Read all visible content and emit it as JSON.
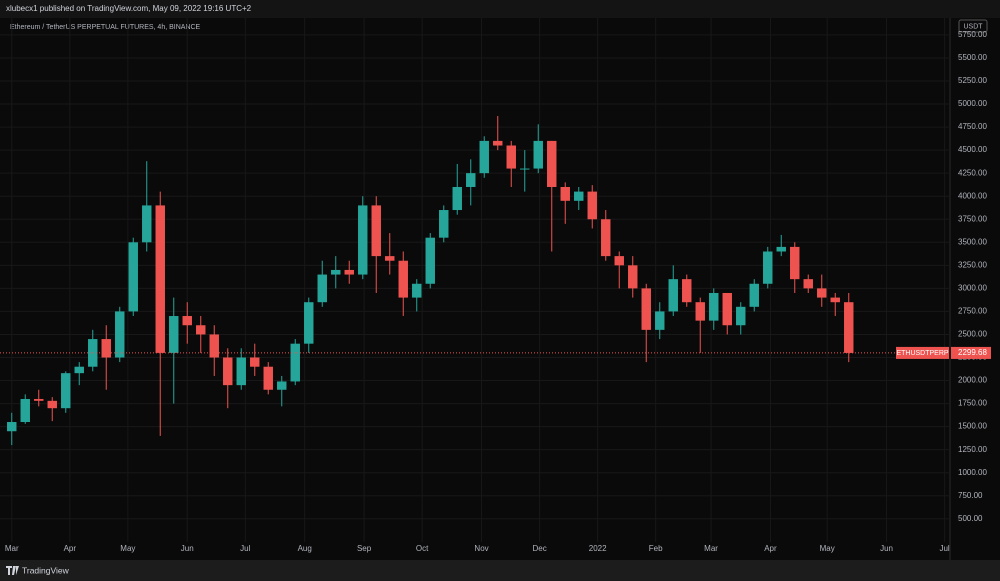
{
  "header": {
    "publisher": "xlubecx1 published on TradingView.com, May 09, 2022 19:16 UTC+2"
  },
  "chart_data": {
    "type": "candlestick",
    "title": "Ethereum / TetherUS PERPETUAL FUTURES, 4h, BINANCE",
    "currency": "USDT",
    "symbol": "ETHUSDTPERP",
    "up_color": "#26a69a",
    "down_color": "#ef5350",
    "grid": true,
    "x": [
      0,
      1,
      2,
      3,
      4,
      5,
      6,
      7,
      8,
      9,
      10,
      11,
      12,
      13,
      14,
      15,
      16,
      17,
      18,
      19,
      20,
      21,
      22,
      23,
      24,
      25,
      26,
      27,
      28,
      29,
      30,
      31,
      32,
      33,
      34,
      35,
      36,
      37,
      38,
      39,
      40,
      41,
      42,
      43,
      44,
      45,
      46,
      47,
      48,
      49,
      50,
      51,
      52,
      53,
      54,
      55,
      56,
      57,
      58,
      59,
      60,
      61,
      62
    ],
    "open": [
      1450,
      1550,
      1800,
      1780,
      1700,
      2080,
      2150,
      2450,
      2250,
      2750,
      3500,
      3900,
      2300,
      2700,
      2600,
      2500,
      2250,
      1950,
      2250,
      2150,
      1900,
      1990,
      2400,
      2850,
      3150,
      3200,
      3150,
      3900,
      3350,
      3300,
      2900,
      3050,
      3550,
      3850,
      4100,
      4250,
      4600,
      4550,
      4300,
      4300,
      4600,
      4100,
      3950,
      4050,
      3750,
      3350,
      3250,
      3000,
      2550,
      2750,
      3100,
      2850,
      2650,
      2950,
      2600,
      2800,
      3050,
      3400,
      3450,
      3100,
      3000,
      2900,
      2850
    ],
    "high": [
      1650,
      1850,
      1900,
      1820,
      2100,
      2200,
      2550,
      2600,
      2800,
      3550,
      4380,
      4050,
      2900,
      2850,
      2700,
      2600,
      2350,
      2350,
      2400,
      2200,
      2050,
      2450,
      2900,
      3300,
      3350,
      3300,
      4000,
      4000,
      3600,
      3400,
      3100,
      3600,
      3900,
      4350,
      4400,
      4650,
      4870,
      4600,
      4500,
      4780,
      4600,
      4150,
      4100,
      4120,
      3850,
      3400,
      3350,
      3050,
      2850,
      3250,
      3150,
      2900,
      3000,
      2950,
      2850,
      3100,
      3450,
      3580,
      3500,
      3150,
      3150,
      2950,
      2950
    ],
    "low": [
      1300,
      1530,
      1720,
      1560,
      1650,
      1950,
      2100,
      1900,
      2200,
      2700,
      3400,
      1400,
      1750,
      2400,
      2300,
      2050,
      1700,
      1900,
      2050,
      1850,
      1720,
      1950,
      2300,
      2800,
      3000,
      3050,
      3100,
      2950,
      3150,
      2700,
      2750,
      3000,
      3500,
      3800,
      3900,
      4200,
      4500,
      4100,
      4050,
      4250,
      3400,
      3700,
      3850,
      3650,
      3300,
      3000,
      2900,
      2200,
      2450,
      2700,
      2800,
      2300,
      2550,
      2500,
      2500,
      2750,
      3000,
      3350,
      2950,
      2950,
      2800,
      2700,
      2200
    ],
    "close": [
      1550,
      1800,
      1780,
      1700,
      2080,
      2150,
      2450,
      2250,
      2750,
      3500,
      3900,
      2300,
      2700,
      2600,
      2500,
      2250,
      1950,
      2250,
      2150,
      1900,
      1990,
      2400,
      2850,
      3150,
      3200,
      3150,
      3900,
      3350,
      3300,
      2900,
      3050,
      3550,
      3850,
      4100,
      4250,
      4600,
      4550,
      4300,
      4300,
      4600,
      4100,
      3950,
      4050,
      3750,
      3350,
      3250,
      3000,
      2550,
      2750,
      3100,
      2850,
      2650,
      2950,
      2600,
      2800,
      3050,
      3400,
      3450,
      3100,
      3000,
      2900,
      2850,
      2299.68
    ],
    "xlim": [
      -0.5,
      69.5
    ],
    "xticks": [
      {
        "value": 0.0,
        "label": "Mar"
      },
      {
        "value": 4.3,
        "label": "Apr"
      },
      {
        "value": 8.6,
        "label": "May"
      },
      {
        "value": 13.0,
        "label": "Jun"
      },
      {
        "value": 17.3,
        "label": "Jul"
      },
      {
        "value": 21.7,
        "label": "Aug"
      },
      {
        "value": 26.1,
        "label": "Sep"
      },
      {
        "value": 30.4,
        "label": "Oct"
      },
      {
        "value": 34.8,
        "label": "Nov"
      },
      {
        "value": 39.1,
        "label": "Dec"
      },
      {
        "value": 43.4,
        "label": "2022"
      },
      {
        "value": 47.7,
        "label": "Feb"
      },
      {
        "value": 51.8,
        "label": "Mar"
      },
      {
        "value": 56.2,
        "label": "Apr"
      },
      {
        "value": 60.4,
        "label": "May"
      },
      {
        "value": 64.8,
        "label": "Jun"
      },
      {
        "value": 69.1,
        "label": "Jul"
      }
    ],
    "ylim": [
      270,
      5890
    ],
    "yticks": [
      {
        "value": 500,
        "label": "500.00"
      },
      {
        "value": 750,
        "label": "750.00"
      },
      {
        "value": 1000,
        "label": "1000.00"
      },
      {
        "value": 1250,
        "label": "1250.00"
      },
      {
        "value": 1500,
        "label": "1500.00"
      },
      {
        "value": 1750,
        "label": "1750.00"
      },
      {
        "value": 2000,
        "label": "2000.00"
      },
      {
        "value": 2250,
        "label": "2250.00"
      },
      {
        "value": 2500,
        "label": "2500.00"
      },
      {
        "value": 2750,
        "label": "2750.00"
      },
      {
        "value": 3000,
        "label": "3000.00"
      },
      {
        "value": 3250,
        "label": "3250.00"
      },
      {
        "value": 3500,
        "label": "3500.00"
      },
      {
        "value": 3750,
        "label": "3750.00"
      },
      {
        "value": 4000,
        "label": "4000.00"
      },
      {
        "value": 4250,
        "label": "4250.00"
      },
      {
        "value": 4500,
        "label": "4500.00"
      },
      {
        "value": 4750,
        "label": "4750.00"
      },
      {
        "value": 5000,
        "label": "5000.00"
      },
      {
        "value": 5250,
        "label": "5250.00"
      },
      {
        "value": 5500,
        "label": "5500.00"
      },
      {
        "value": 5750,
        "label": "5750.00"
      }
    ]
  },
  "footer": {
    "brand": "TradingView"
  }
}
